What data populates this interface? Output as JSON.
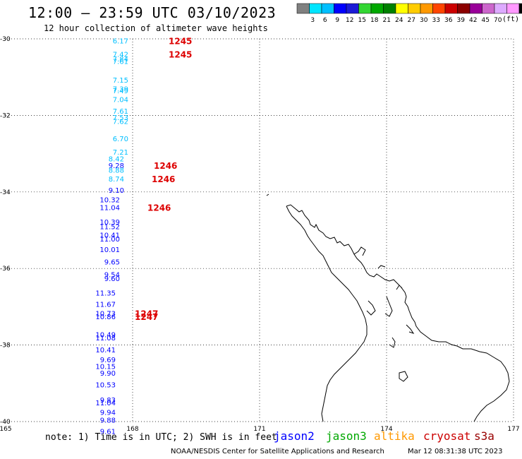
{
  "header": {
    "title": "12:00 – 23:59 UTC 03/10/2023",
    "subtitle": "12 hour collection of altimeter wave heights"
  },
  "colorbar": {
    "colors": [
      "#808080",
      "#00e5ff",
      "#00bfff",
      "#0000ff",
      "#1c1cd6",
      "#33d633",
      "#00a800",
      "#008000",
      "#ffff00",
      "#ffcc00",
      "#ff9900",
      "#ff4500",
      "#cc0000",
      "#8b0000",
      "#990099",
      "#cc66cc",
      "#ddaaff",
      "#ff99ff",
      "#000000"
    ],
    "labels": [
      "3",
      "6",
      "9",
      "12",
      "15",
      "18",
      "21",
      "24",
      "27",
      "30",
      "33",
      "36",
      "39",
      "42",
      "45",
      "70"
    ],
    "unit": "(ft)"
  },
  "footer": {
    "note": "note: 1) Time is in UTC; 2) SWH is in feet",
    "credit": "NOAA/NESDIS Center for Satellite Applications and Research",
    "timestamp": "Mar 12 08:31:38 UTC 2023",
    "missions": [
      {
        "name": "jason2",
        "color": "#0000ff"
      },
      {
        "name": "jason3",
        "color": "#00a800"
      },
      {
        "name": "altika",
        "color": "#ff9900"
      },
      {
        "name": "cryosat",
        "color": "#cc0000"
      },
      {
        "name": "s3a",
        "color": "#990000"
      }
    ]
  },
  "chart_data": {
    "type": "scatter",
    "xlim": [
      165,
      177
    ],
    "ylim": [
      -40,
      -30
    ],
    "xticks": [
      165,
      168,
      171,
      174,
      177
    ],
    "xtick_labels": [
      "165",
      "168",
      "171",
      "174",
      "177"
    ],
    "yticks": [
      -30,
      -32,
      -34,
      -36,
      -38,
      -40
    ],
    "ytick_labels": [
      "-30",
      "-32",
      "-34",
      "-36",
      "-38",
      "-40"
    ],
    "grid": true,
    "observations": [
      {
        "lon": 167.9,
        "lat": -30.05,
        "swh": "6.17",
        "color": "#00bfff"
      },
      {
        "lon": 167.9,
        "lat": -30.4,
        "swh": "7.42",
        "color": "#00bfff"
      },
      {
        "lon": 167.9,
        "lat": -30.52,
        "swh": "7.84",
        "color": "#00bfff"
      },
      {
        "lon": 167.9,
        "lat": -30.58,
        "swh": "7.61",
        "color": "#00bfff"
      },
      {
        "lon": 167.9,
        "lat": -31.07,
        "swh": "7.15",
        "color": "#00bfff"
      },
      {
        "lon": 167.9,
        "lat": -31.3,
        "swh": "7.39",
        "color": "#00bfff"
      },
      {
        "lon": 167.9,
        "lat": -31.35,
        "swh": "7.49",
        "color": "#00bfff"
      },
      {
        "lon": 167.9,
        "lat": -31.58,
        "swh": "7.04",
        "color": "#00bfff"
      },
      {
        "lon": 167.9,
        "lat": -31.88,
        "swh": "7.61",
        "color": "#00bfff"
      },
      {
        "lon": 167.9,
        "lat": -32.05,
        "swh": "7.53",
        "color": "#00bfff"
      },
      {
        "lon": 167.9,
        "lat": -32.15,
        "swh": "7.62",
        "color": "#00bfff"
      },
      {
        "lon": 167.9,
        "lat": -32.6,
        "swh": "6.70",
        "color": "#00bfff"
      },
      {
        "lon": 167.9,
        "lat": -32.95,
        "swh": "7.21",
        "color": "#00bfff"
      },
      {
        "lon": 167.8,
        "lat": -33.13,
        "swh": "8.42",
        "color": "#00bfff"
      },
      {
        "lon": 167.8,
        "lat": -33.3,
        "swh": "9.28",
        "color": "#0000ff"
      },
      {
        "lon": 167.8,
        "lat": -33.42,
        "swh": "8.88",
        "color": "#00bfff"
      },
      {
        "lon": 167.8,
        "lat": -33.65,
        "swh": "8.74",
        "color": "#00bfff"
      },
      {
        "lon": 167.8,
        "lat": -33.95,
        "swh": "9.10",
        "color": "#0000ff"
      },
      {
        "lon": 167.7,
        "lat": -34.2,
        "swh": "10.32",
        "color": "#0000ff"
      },
      {
        "lon": 167.7,
        "lat": -34.4,
        "swh": "11.04",
        "color": "#0000ff"
      },
      {
        "lon": 167.7,
        "lat": -34.78,
        "swh": "10.39",
        "color": "#0000ff"
      },
      {
        "lon": 167.7,
        "lat": -34.9,
        "swh": "11.52",
        "color": "#0000ff"
      },
      {
        "lon": 167.7,
        "lat": -35.12,
        "swh": "10.41",
        "color": "#0000ff"
      },
      {
        "lon": 167.7,
        "lat": -35.22,
        "swh": "11.00",
        "color": "#0000ff"
      },
      {
        "lon": 167.7,
        "lat": -35.5,
        "swh": "10.01",
        "color": "#0000ff"
      },
      {
        "lon": 167.7,
        "lat": -35.82,
        "swh": "9.65",
        "color": "#0000ff"
      },
      {
        "lon": 167.7,
        "lat": -36.15,
        "swh": "9.54",
        "color": "#0000ff"
      },
      {
        "lon": 167.7,
        "lat": -36.25,
        "swh": "9.60",
        "color": "#0000ff"
      },
      {
        "lon": 167.6,
        "lat": -36.63,
        "swh": "11.35",
        "color": "#0000ff"
      },
      {
        "lon": 167.6,
        "lat": -36.93,
        "swh": "11.67",
        "color": "#0000ff"
      },
      {
        "lon": 167.6,
        "lat": -37.17,
        "swh": "10.73",
        "color": "#0000ff"
      },
      {
        "lon": 167.6,
        "lat": -37.25,
        "swh": "10.86",
        "color": "#0000ff"
      },
      {
        "lon": 167.6,
        "lat": -37.72,
        "swh": "10.49",
        "color": "#0000ff"
      },
      {
        "lon": 167.6,
        "lat": -37.8,
        "swh": "11.08",
        "color": "#0000ff"
      },
      {
        "lon": 167.6,
        "lat": -38.12,
        "swh": "10.41",
        "color": "#0000ff"
      },
      {
        "lon": 167.6,
        "lat": -38.38,
        "swh": "9.69",
        "color": "#0000ff"
      },
      {
        "lon": 167.6,
        "lat": -38.55,
        "swh": "10.15",
        "color": "#0000ff"
      },
      {
        "lon": 167.6,
        "lat": -38.73,
        "swh": "9.90",
        "color": "#0000ff"
      },
      {
        "lon": 167.6,
        "lat": -39.03,
        "swh": "10.53",
        "color": "#0000ff"
      },
      {
        "lon": 167.6,
        "lat": -39.43,
        "swh": "9.83",
        "color": "#0000ff"
      },
      {
        "lon": 167.6,
        "lat": -39.5,
        "swh": "11.04",
        "color": "#0000ff"
      },
      {
        "lon": 167.6,
        "lat": -39.75,
        "swh": "9.94",
        "color": "#0000ff"
      },
      {
        "lon": 167.6,
        "lat": -39.95,
        "swh": "9.88",
        "color": "#0000ff"
      },
      {
        "lon": 167.6,
        "lat": -40.25,
        "swh": "9.61",
        "color": "#0000ff"
      }
    ],
    "time_labels": [
      {
        "lon": 168.85,
        "lat": -30.05,
        "text": "1245"
      },
      {
        "lon": 168.85,
        "lat": -30.4,
        "text": "1245"
      },
      {
        "lon": 168.5,
        "lat": -33.3,
        "text": "1246"
      },
      {
        "lon": 168.45,
        "lat": -33.65,
        "text": "1246"
      },
      {
        "lon": 168.35,
        "lat": -34.4,
        "text": "1246"
      },
      {
        "lon": 168.05,
        "lat": -37.17,
        "text": "1247"
      },
      {
        "lon": 168.05,
        "lat": -37.25,
        "text": "1247"
      }
    ]
  }
}
